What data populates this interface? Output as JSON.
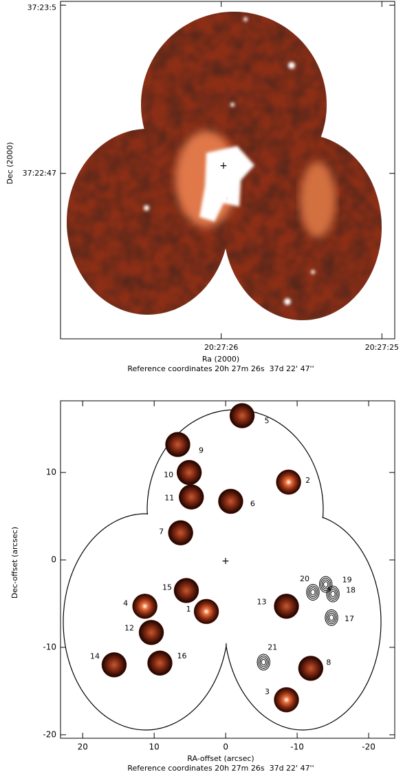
{
  "chart_data": [
    {
      "type": "image",
      "xlabel": "Ra (2000)",
      "ylabel": "Dec (2000)",
      "caption": "Reference coordinates 20h 27m 26s  37d 22' 47''",
      "xlim": [
        27.0,
        24.92
      ],
      "xticks": [
        {
          "value": 26,
          "label": "20:27:26"
        },
        {
          "value": 25,
          "label": "20:27:25"
        }
      ],
      "ylim": [
        29.3,
        65.4
      ],
      "yticks": [
        {
          "value": 65,
          "label": "37:23:5"
        },
        {
          "value": 47,
          "label": "37:22:47"
        }
      ]
    },
    {
      "type": "scatter",
      "xlabel": "RA-offset (arcsec)",
      "ylabel": "Dec-offset (arcsec)",
      "caption": "Reference coordinates 20h 27m 26s  37d 22' 47''",
      "xlim": [
        23.1,
        -23.65
      ],
      "xticks": [
        20,
        10,
        0,
        -10,
        -20
      ],
      "ylim": [
        -20.4,
        18.2
      ],
      "yticks": [
        -20,
        -10,
        0,
        10
      ],
      "series": [
        {
          "style": "blob",
          "color": "#7a1a08",
          "labels": [
            "1",
            "2",
            "3",
            "4",
            "5",
            "6",
            "7",
            "8",
            "9",
            "10",
            "11",
            "12",
            "13",
            "14",
            "15",
            "16"
          ],
          "x": [
            2.7,
            -8.8,
            -8.5,
            11.3,
            -2.3,
            -0.7,
            6.3,
            -11.9,
            6.7,
            5.1,
            4.8,
            10.4,
            -8.5,
            15.6,
            5.5,
            9.2
          ],
          "values": [
            -5.9,
            8.9,
            -16.0,
            -5.3,
            16.5,
            6.7,
            3.1,
            -12.4,
            13.2,
            10.0,
            7.2,
            -8.3,
            -5.3,
            -12.0,
            -3.5,
            -11.8
          ]
        },
        {
          "style": "contour",
          "color": "#000000",
          "labels": [
            "17",
            "18",
            "19",
            "20",
            "21"
          ],
          "x": [
            -14.8,
            -15.0,
            -14.0,
            -12.2,
            -5.3
          ],
          "values": [
            -6.6,
            -3.9,
            -2.8,
            -3.7,
            -11.7
          ]
        }
      ]
    }
  ]
}
